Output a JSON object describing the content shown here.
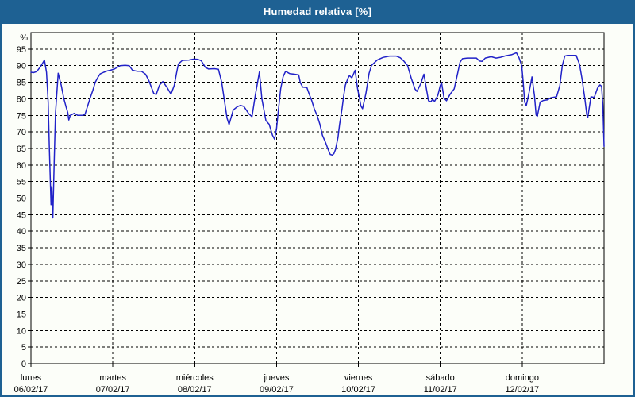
{
  "window": {
    "title": "Humedad relativa [%]"
  },
  "colors": {
    "title_bar_bg": "#1e6193",
    "title_text": "#ffffff",
    "page_bg": "#fcfef9",
    "line": "#2122c8",
    "grid": "#000000",
    "axis": "#000000",
    "text": "#000000"
  },
  "y_axis": {
    "unit_label": "%",
    "min": 0,
    "max": 100,
    "tick_min": 0,
    "tick_max": 95,
    "tick_step": 5
  },
  "x_axis": {
    "days": [
      {
        "label": "lunes",
        "date": "06/02/17"
      },
      {
        "label": "martes",
        "date": "07/02/17"
      },
      {
        "label": "miércoles",
        "date": "08/02/17"
      },
      {
        "label": "jueves",
        "date": "09/02/17"
      },
      {
        "label": "viernes",
        "date": "10/02/17"
      },
      {
        "label": "sábado",
        "date": "11/02/17"
      },
      {
        "label": "domingo",
        "date": "12/02/17"
      }
    ]
  },
  "chart_data": {
    "type": "line",
    "title": "Humedad relativa [%]",
    "ylabel": "%",
    "ylim": [
      0,
      100
    ],
    "grid": "dashed",
    "legend": "none",
    "x_unit": "days from lunes 06/02/17 (0–7)",
    "series": [
      {
        "name": "Humedad relativa",
        "color": "#2122c8",
        "points": [
          [
            0.0,
            88.0
          ],
          [
            0.03,
            87.9
          ],
          [
            0.07,
            88.2
          ],
          [
            0.12,
            89.8
          ],
          [
            0.165,
            91.7
          ],
          [
            0.19,
            88.0
          ],
          [
            0.21,
            79.0
          ],
          [
            0.225,
            65.0
          ],
          [
            0.245,
            48.0
          ],
          [
            0.255,
            53.5
          ],
          [
            0.268,
            44.0
          ],
          [
            0.285,
            62.0
          ],
          [
            0.3,
            75.5
          ],
          [
            0.333,
            87.7
          ],
          [
            0.37,
            84.0
          ],
          [
            0.4,
            80.2
          ],
          [
            0.43,
            77.4
          ],
          [
            0.45,
            75.8
          ],
          [
            0.462,
            73.6
          ],
          [
            0.48,
            75.0
          ],
          [
            0.53,
            75.6
          ],
          [
            0.57,
            75.0
          ],
          [
            0.63,
            75.0
          ],
          [
            0.66,
            75.3
          ],
          [
            0.72,
            80.0
          ],
          [
            0.755,
            82.5
          ],
          [
            0.785,
            85.0
          ],
          [
            0.82,
            86.6
          ],
          [
            0.845,
            87.5
          ],
          [
            0.89,
            88.0
          ],
          [
            0.93,
            88.4
          ],
          [
            0.97,
            88.6
          ],
          [
            1.02,
            89.0
          ],
          [
            1.09,
            90.0
          ],
          [
            1.15,
            90.1
          ],
          [
            1.2,
            90.0
          ],
          [
            1.24,
            88.6
          ],
          [
            1.3,
            88.3
          ],
          [
            1.35,
            88.3
          ],
          [
            1.4,
            87.4
          ],
          [
            1.44,
            85.5
          ],
          [
            1.5,
            81.6
          ],
          [
            1.53,
            81.3
          ],
          [
            1.57,
            84.1
          ],
          [
            1.61,
            85.2
          ],
          [
            1.66,
            83.5
          ],
          [
            1.71,
            81.4
          ],
          [
            1.75,
            84.0
          ],
          [
            1.78,
            88.0
          ],
          [
            1.8,
            90.5
          ],
          [
            1.85,
            91.6
          ],
          [
            1.93,
            91.7
          ],
          [
            1.99,
            92.0
          ],
          [
            2.04,
            91.9
          ],
          [
            2.08,
            91.5
          ],
          [
            2.13,
            89.5
          ],
          [
            2.17,
            89.0
          ],
          [
            2.24,
            89.1
          ],
          [
            2.29,
            88.9
          ],
          [
            2.33,
            85.0
          ],
          [
            2.36,
            80.0
          ],
          [
            2.395,
            74.2
          ],
          [
            2.42,
            72.2
          ],
          [
            2.47,
            76.6
          ],
          [
            2.52,
            77.6
          ],
          [
            2.56,
            78.0
          ],
          [
            2.6,
            77.7
          ],
          [
            2.66,
            75.5
          ],
          [
            2.7,
            74.6
          ],
          [
            2.74,
            81.0
          ],
          [
            2.79,
            88.1
          ],
          [
            2.82,
            80.0
          ],
          [
            2.87,
            73.4
          ],
          [
            2.91,
            72.3
          ],
          [
            2.95,
            69.0
          ],
          [
            2.975,
            67.8
          ],
          [
            3.0,
            71.0
          ],
          [
            3.02,
            76.0
          ],
          [
            3.05,
            83.0
          ],
          [
            3.08,
            86.7
          ],
          [
            3.11,
            88.3
          ],
          [
            3.16,
            87.6
          ],
          [
            3.22,
            87.4
          ],
          [
            3.27,
            87.2
          ],
          [
            3.29,
            84.9
          ],
          [
            3.32,
            83.5
          ],
          [
            3.37,
            83.4
          ],
          [
            3.4,
            81.3
          ],
          [
            3.43,
            79.4
          ],
          [
            3.46,
            77.0
          ],
          [
            3.5,
            74.6
          ],
          [
            3.53,
            72.2
          ],
          [
            3.56,
            69.0
          ],
          [
            3.6,
            66.7
          ],
          [
            3.63,
            64.7
          ],
          [
            3.655,
            63.2
          ],
          [
            3.68,
            63.0
          ],
          [
            3.7,
            63.4
          ],
          [
            3.72,
            64.7
          ],
          [
            3.75,
            68.3
          ],
          [
            3.77,
            72.2
          ],
          [
            3.8,
            77.0
          ],
          [
            3.82,
            80.9
          ],
          [
            3.84,
            84.1
          ],
          [
            3.87,
            86.1
          ],
          [
            3.89,
            87.0
          ],
          [
            3.92,
            86.3
          ],
          [
            3.96,
            88.6
          ],
          [
            3.99,
            83.0
          ],
          [
            4.01,
            80.5
          ],
          [
            4.03,
            77.8
          ],
          [
            4.05,
            77.0
          ],
          [
            4.09,
            81.5
          ],
          [
            4.13,
            87.7
          ],
          [
            4.16,
            90.1
          ],
          [
            4.23,
            91.7
          ],
          [
            4.3,
            92.5
          ],
          [
            4.38,
            92.9
          ],
          [
            4.46,
            92.9
          ],
          [
            4.51,
            92.4
          ],
          [
            4.55,
            91.5
          ],
          [
            4.6,
            90.0
          ],
          [
            4.645,
            86.2
          ],
          [
            4.69,
            83.0
          ],
          [
            4.715,
            82.2
          ],
          [
            4.76,
            84.5
          ],
          [
            4.8,
            87.4
          ],
          [
            4.83,
            83.0
          ],
          [
            4.855,
            79.4
          ],
          [
            4.885,
            79.1
          ],
          [
            4.905,
            79.8
          ],
          [
            4.93,
            79.2
          ],
          [
            4.97,
            81.0
          ],
          [
            5.0,
            84.0
          ],
          [
            5.015,
            84.9
          ],
          [
            5.045,
            80.2
          ],
          [
            5.075,
            79.4
          ],
          [
            5.12,
            81.4
          ],
          [
            5.17,
            83.0
          ],
          [
            5.21,
            87.5
          ],
          [
            5.24,
            91.0
          ],
          [
            5.27,
            92.1
          ],
          [
            5.33,
            92.3
          ],
          [
            5.44,
            92.3
          ],
          [
            5.48,
            91.4
          ],
          [
            5.51,
            91.3
          ],
          [
            5.55,
            92.3
          ],
          [
            5.62,
            92.7
          ],
          [
            5.68,
            92.3
          ],
          [
            5.73,
            92.5
          ],
          [
            5.8,
            93.0
          ],
          [
            5.87,
            93.3
          ],
          [
            5.93,
            93.9
          ],
          [
            5.96,
            92.5
          ],
          [
            5.995,
            90.0
          ],
          [
            6.01,
            85.7
          ],
          [
            6.03,
            79.0
          ],
          [
            6.05,
            77.9
          ],
          [
            6.085,
            82.0
          ],
          [
            6.12,
            86.6
          ],
          [
            6.15,
            81.0
          ],
          [
            6.17,
            75.1
          ],
          [
            6.185,
            74.7
          ],
          [
            6.22,
            79.0
          ],
          [
            6.26,
            79.5
          ],
          [
            6.31,
            79.7
          ],
          [
            6.35,
            80.3
          ],
          [
            6.42,
            80.6
          ],
          [
            6.46,
            84.0
          ],
          [
            6.49,
            90.0
          ],
          [
            6.52,
            92.9
          ],
          [
            6.55,
            93.1
          ],
          [
            6.66,
            93.1
          ],
          [
            6.7,
            90.4
          ],
          [
            6.73,
            86.1
          ],
          [
            6.765,
            80.0
          ],
          [
            6.79,
            75.1
          ],
          [
            6.8,
            74.3
          ],
          [
            6.84,
            80.6
          ],
          [
            6.88,
            80.4
          ],
          [
            6.92,
            83.2
          ],
          [
            6.95,
            84.2
          ],
          [
            6.97,
            83.8
          ],
          [
            6.985,
            78.0
          ],
          [
            7.0,
            65.6
          ]
        ]
      }
    ]
  }
}
